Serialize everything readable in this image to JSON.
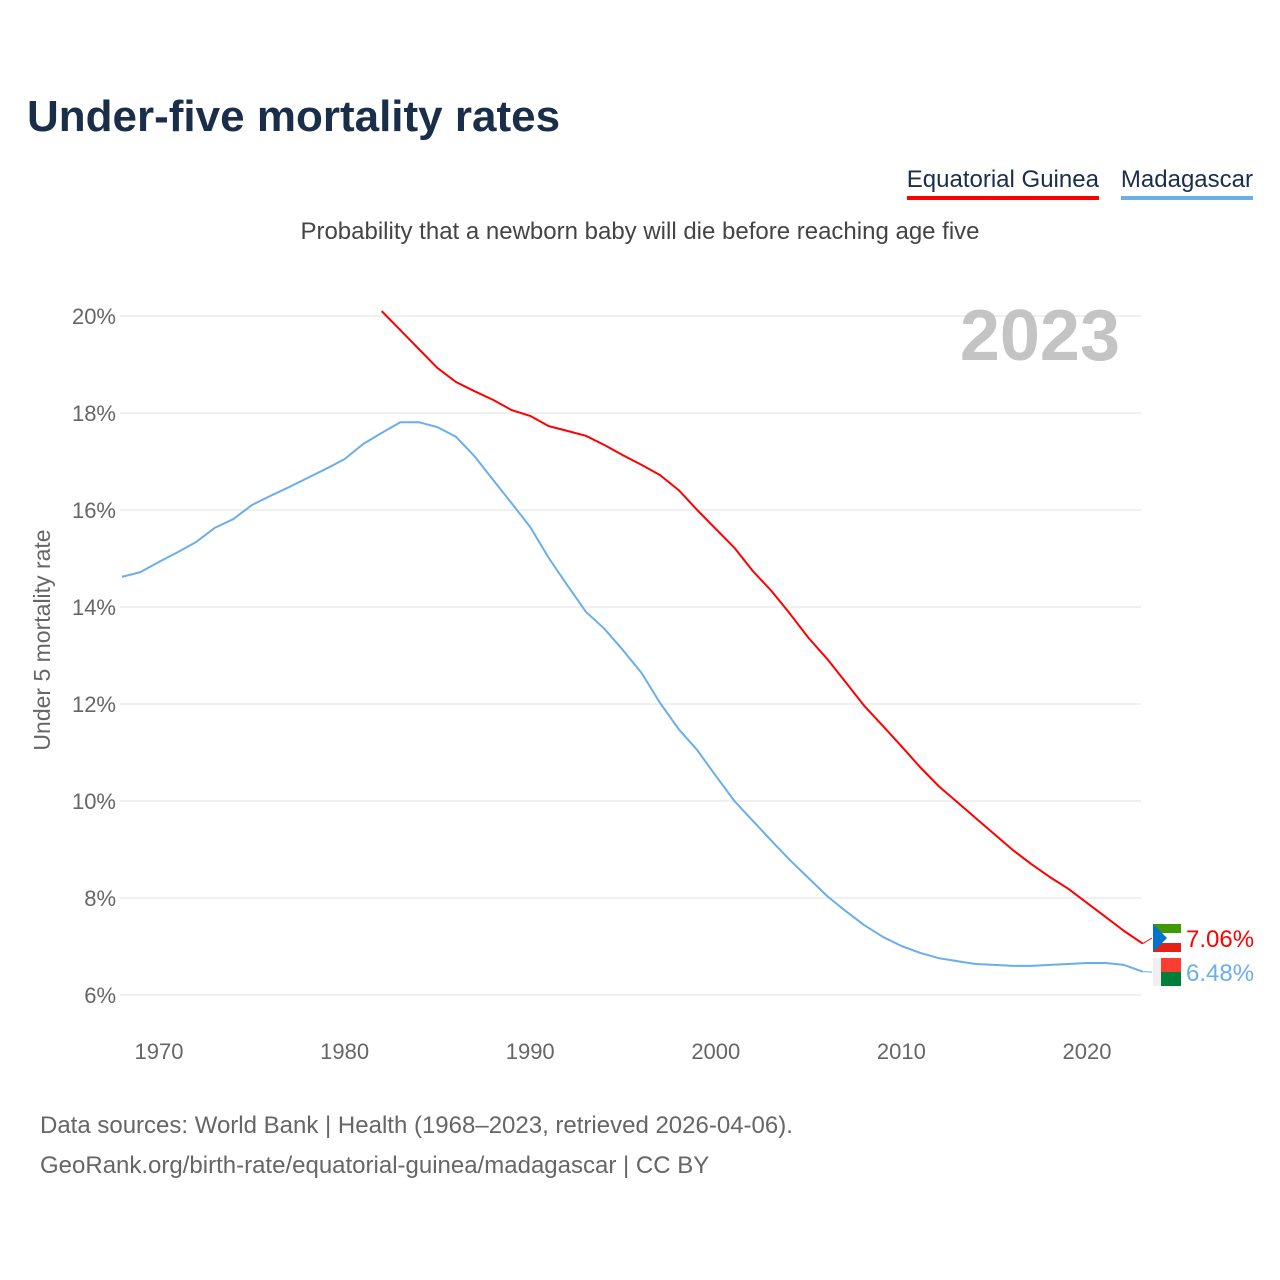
{
  "colors": {
    "equatorial_guinea": "#ff0000",
    "madagascar": "#6aaeea"
  },
  "footer": {
    "line1": "Data sources: World Bank | Health (1968–2023, retrieved 2026-04-06).",
    "line2": "GeoRank.org/birth-rate/equatorial-guinea/madagascar | CC BY"
  },
  "chart_data": {
    "type": "line",
    "title": "Under-five mortality rates",
    "subtitle": "Probability that a newborn baby will die before reaching age five",
    "ylabel": "Under 5 mortality rate",
    "xlabel": "",
    "year_label": "2023",
    "xlim": [
      1968,
      2023
    ],
    "ylim": [
      5.4,
      20.4
    ],
    "grid": true,
    "legend_placement": "top-right",
    "xticks": [
      "1970",
      "1980",
      "1990",
      "2000",
      "2010",
      "2020"
    ],
    "yticks": [
      "6%",
      "8%",
      "10%",
      "12%",
      "14%",
      "16%",
      "18%",
      "20%"
    ],
    "series": [
      {
        "name": "Equatorial Guinea",
        "end_label": "7.06%",
        "start_year": 1982,
        "values": [
          20.1,
          19.71,
          19.32,
          18.93,
          18.64,
          18.45,
          18.27,
          18.06,
          17.94,
          17.73,
          17.63,
          17.53,
          17.34,
          17.13,
          16.93,
          16.72,
          16.41,
          16.0,
          15.61,
          15.22,
          14.74,
          14.33,
          13.86,
          13.36,
          12.93,
          12.45,
          11.96,
          11.55,
          11.13,
          10.7,
          10.31,
          9.98,
          9.65,
          9.32,
          8.99,
          8.7,
          8.43,
          8.19,
          7.9,
          7.61,
          7.32,
          7.06
        ]
      },
      {
        "name": "Madagascar",
        "end_label": "6.48%",
        "start_year": 1968,
        "values": [
          14.62,
          14.72,
          14.93,
          15.13,
          15.34,
          15.63,
          15.81,
          16.1,
          16.29,
          16.47,
          16.66,
          16.85,
          17.05,
          17.36,
          17.59,
          17.81,
          17.81,
          17.71,
          17.51,
          17.11,
          16.62,
          16.14,
          15.65,
          15.01,
          14.45,
          13.9,
          13.55,
          13.11,
          12.64,
          12.02,
          11.48,
          11.05,
          10.52,
          10.0,
          9.59,
          9.18,
          8.78,
          8.41,
          8.04,
          7.73,
          7.44,
          7.2,
          7.01,
          6.87,
          6.76,
          6.7,
          6.64,
          6.62,
          6.6,
          6.6,
          6.62,
          6.64,
          6.66,
          6.66,
          6.62,
          6.48
        ]
      }
    ]
  }
}
